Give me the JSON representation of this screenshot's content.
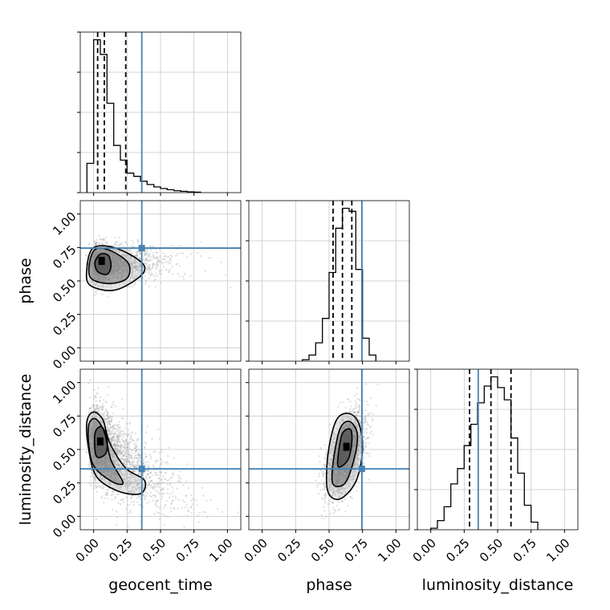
{
  "chart_data": {
    "type": "corner",
    "parameters": [
      {
        "name": "geocent_time",
        "label": "geocent_time",
        "range": [
          -0.1,
          1.1
        ],
        "truth": 0.36,
        "quantiles": [
          0.03,
          0.08,
          0.24
        ]
      },
      {
        "name": "phase",
        "label": "phase",
        "range": [
          -0.1,
          1.1
        ],
        "truth": 0.745,
        "quantiles": [
          0.53,
          0.6,
          0.67
        ]
      },
      {
        "name": "luminosity_distance",
        "label": "luminosity_distance",
        "range": [
          -0.1,
          1.1
        ],
        "truth": 0.355,
        "quantiles": [
          0.29,
          0.45,
          0.6
        ]
      }
    ],
    "ticks": [
      0.0,
      0.25,
      0.5,
      0.75,
      1.0
    ],
    "tick_labels": [
      "0.00",
      "0.25",
      "0.50",
      "0.75",
      "1.00"
    ],
    "histograms": [
      {
        "parameter": "geocent_time",
        "bin_edges": [
          -0.05,
          0.0,
          0.05,
          0.1,
          0.15,
          0.2,
          0.25,
          0.3,
          0.35,
          0.4,
          0.45,
          0.5,
          0.55,
          0.6,
          0.65,
          0.7,
          0.75,
          0.8
        ],
        "counts": [
          0.18,
          0.94,
          0.85,
          0.55,
          0.29,
          0.2,
          0.12,
          0.1,
          0.07,
          0.05,
          0.035,
          0.025,
          0.018,
          0.012,
          0.008,
          0.005,
          0.003
        ]
      },
      {
        "parameter": "phase",
        "bin_edges": [
          0.3,
          0.35,
          0.4,
          0.45,
          0.5,
          0.55,
          0.6,
          0.65,
          0.7,
          0.75,
          0.8,
          0.85
        ],
        "counts": [
          0.01,
          0.04,
          0.12,
          0.28,
          0.58,
          0.87,
          1.0,
          0.98,
          0.6,
          0.15,
          0.04
        ]
      },
      {
        "parameter": "luminosity_distance",
        "bin_edges": [
          0.0,
          0.05,
          0.1,
          0.15,
          0.2,
          0.25,
          0.3,
          0.35,
          0.4,
          0.45,
          0.5,
          0.55,
          0.6,
          0.65,
          0.7,
          0.75,
          0.8
        ],
        "counts": [
          0.01,
          0.06,
          0.15,
          0.3,
          0.4,
          0.55,
          0.69,
          0.83,
          0.94,
          1.0,
          0.93,
          0.85,
          0.6,
          0.37,
          0.16,
          0.05
        ]
      }
    ],
    "posterior_2d": [
      {
        "x_param": "geocent_time",
        "y_param": "phase",
        "samples": {
          "count": 2600,
          "x_peak": 0.05,
          "x_tail_scale": 0.14,
          "y_center": 0.63,
          "y_sd": 0.07
        },
        "peak": [
          0.06,
          0.65
        ],
        "contours": [
          [
            [
              0.03,
              0.57
            ],
            [
              0.1,
              0.55
            ],
            [
              0.13,
              0.61
            ],
            [
              0.11,
              0.69
            ],
            [
              0.05,
              0.7
            ],
            [
              0.01,
              0.64
            ]
          ],
          [
            [
              -0.02,
              0.52
            ],
            [
              0.12,
              0.48
            ],
            [
              0.25,
              0.52
            ],
            [
              0.26,
              0.63
            ],
            [
              0.14,
              0.72
            ],
            [
              0.02,
              0.74
            ],
            [
              -0.03,
              0.64
            ]
          ],
          [
            [
              -0.03,
              0.47
            ],
            [
              0.15,
              0.43
            ],
            [
              0.33,
              0.52
            ],
            [
              0.38,
              0.61
            ],
            [
              0.25,
              0.71
            ],
            [
              0.1,
              0.76
            ],
            [
              -0.01,
              0.74
            ],
            [
              -0.05,
              0.6
            ]
          ]
        ]
      },
      {
        "x_param": "geocent_time",
        "y_param": "luminosity_distance",
        "samples": {
          "count": 2800,
          "x_peak": 0.04,
          "x_tail_scale": 0.16,
          "y_center": 0.52,
          "y_sd": 0.14,
          "y_slope": -0.6
        },
        "peak": [
          0.05,
          0.56
        ],
        "contours": [
          [
            [
              0.02,
              0.45
            ],
            [
              0.09,
              0.47
            ],
            [
              0.1,
              0.58
            ],
            [
              0.06,
              0.67
            ],
            [
              0.01,
              0.62
            ]
          ],
          [
            [
              -0.01,
              0.4
            ],
            [
              0.12,
              0.27
            ],
            [
              0.22,
              0.25
            ],
            [
              0.13,
              0.42
            ],
            [
              0.08,
              0.63
            ],
            [
              0.01,
              0.73
            ],
            [
              -0.04,
              0.66
            ]
          ],
          [
            [
              0.02,
              0.3
            ],
            [
              0.18,
              0.19
            ],
            [
              0.35,
              0.17
            ],
            [
              0.38,
              0.27
            ],
            [
              0.24,
              0.36
            ],
            [
              0.12,
              0.55
            ],
            [
              0.07,
              0.72
            ],
            [
              0.0,
              0.78
            ],
            [
              -0.05,
              0.71
            ],
            [
              -0.04,
              0.52
            ]
          ]
        ]
      },
      {
        "x_param": "phase",
        "y_param": "luminosity_distance",
        "samples": {
          "count": 2800,
          "x_center": 0.62,
          "x_sd": 0.07,
          "y_center": 0.46,
          "y_sd": 0.15,
          "corr": 0.55
        },
        "peak": [
          0.63,
          0.52
        ],
        "contours": [
          [
            [
              0.57,
              0.37
            ],
            [
              0.64,
              0.42
            ],
            [
              0.67,
              0.55
            ],
            [
              0.66,
              0.65
            ],
            [
              0.6,
              0.62
            ],
            [
              0.57,
              0.47
            ]
          ],
          [
            [
              0.53,
              0.24
            ],
            [
              0.62,
              0.25
            ],
            [
              0.69,
              0.44
            ],
            [
              0.71,
              0.62
            ],
            [
              0.65,
              0.71
            ],
            [
              0.58,
              0.65
            ],
            [
              0.53,
              0.4
            ]
          ],
          [
            [
              0.49,
              0.19
            ],
            [
              0.58,
              0.13
            ],
            [
              0.7,
              0.26
            ],
            [
              0.75,
              0.5
            ],
            [
              0.72,
              0.7
            ],
            [
              0.64,
              0.77
            ],
            [
              0.55,
              0.71
            ],
            [
              0.49,
              0.45
            ]
          ]
        ]
      }
    ],
    "colors": {
      "truth": "#4682b4",
      "hist": "#000000",
      "quantile": "#000000",
      "grid": "#c8c8c8",
      "scatter": "#a0a0a0",
      "contour": "#000000"
    },
    "grid": true,
    "legend": "none"
  }
}
